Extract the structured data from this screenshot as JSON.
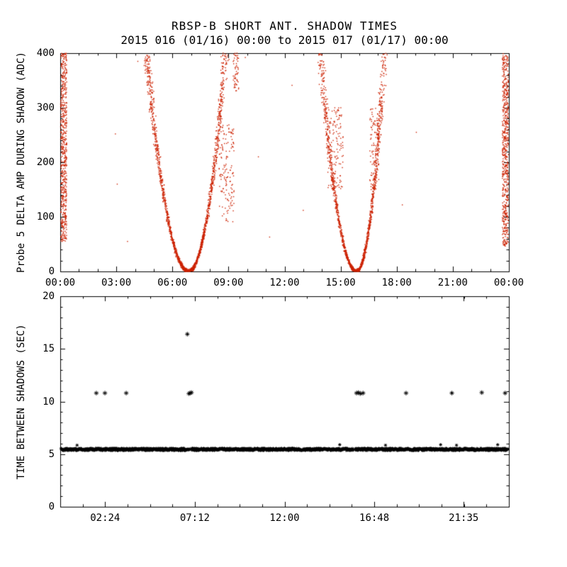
{
  "colors": {
    "background": "#ffffff",
    "axes": "#000000"
  },
  "chart_data": [
    {
      "type": "scatter",
      "panel": "top",
      "title": "RBSP-B SHORT ANT. SHADOW TIMES",
      "subtitle": "2015 016 (01/16) 00:00 to 2015 017 (01/17) 00:00",
      "xlabel": "",
      "ylabel": "Probe 5 DELTA AMP DURING SHADOW (ADC)",
      "xlim": [
        0,
        24
      ],
      "ylim": [
        0,
        400
      ],
      "xtick_positions": [
        0,
        3,
        6,
        9,
        12,
        15,
        18,
        21,
        24
      ],
      "xtick_labels": [
        "00:00",
        "03:00",
        "06:00",
        "09:00",
        "12:00",
        "15:00",
        "18:00",
        "21:00",
        "00:00"
      ],
      "ytick_positions": [
        0,
        100,
        200,
        300,
        400
      ],
      "ytick_labels": [
        "0",
        "100",
        "200",
        "300",
        "400"
      ],
      "x_minor_step": 1,
      "y_minor_step": 20,
      "marker": "dot",
      "color": "#cc2200",
      "series_description": "Probe 5 delta amplitude during shadow; V-shaped shadow signatures with vertices near 06:55 and 15:50 at 0 ADC, arms rising to 400 ADC, plus dense vertical bands at the 00:00 day boundaries",
      "v_curves": [
        {
          "center": 6.87,
          "left_top_x": 4.6,
          "right_top_x": 8.85,
          "n_per_arm": 900
        },
        {
          "center": 15.85,
          "left_top_x": 13.9,
          "right_top_x": 17.35,
          "n_per_arm": 750
        }
      ],
      "edge_bands": [
        {
          "x0": 0.02,
          "x1": 0.35,
          "y0": 55,
          "y1": 400,
          "n": 600
        },
        {
          "x0": 23.65,
          "x1": 23.98,
          "y0": 45,
          "y1": 400,
          "n": 620
        }
      ],
      "blobs": [
        {
          "x0": 8.5,
          "x1": 9.3,
          "y0": 90,
          "y1": 270,
          "n": 150
        },
        {
          "x0": 9.25,
          "x1": 9.55,
          "y0": 330,
          "y1": 400,
          "n": 55
        },
        {
          "x0": 14.3,
          "x1": 15.15,
          "y0": 150,
          "y1": 300,
          "n": 140
        },
        {
          "x0": 16.55,
          "x1": 17.05,
          "y0": 150,
          "y1": 300,
          "n": 85
        }
      ],
      "outliers": [
        [
          2.95,
          252
        ],
        [
          3.05,
          160
        ],
        [
          4.15,
          385
        ],
        [
          5.0,
          330
        ],
        [
          9.9,
          392
        ],
        [
          11.2,
          63
        ],
        [
          12.4,
          341
        ],
        [
          13.0,
          112
        ],
        [
          18.3,
          122
        ],
        [
          19.05,
          255
        ],
        [
          10.6,
          210
        ],
        [
          3.6,
          55
        ]
      ]
    },
    {
      "type": "scatter",
      "panel": "bottom",
      "title": "",
      "xlabel": "",
      "ylabel": "TIME BETWEEN SHADOWS (SEC)",
      "xlim": [
        0,
        24
      ],
      "ylim": [
        0,
        20
      ],
      "xtick_positions": [
        2.4,
        7.2,
        12.0,
        16.8,
        21.5833
      ],
      "xtick_labels": [
        "02:24",
        "07:12",
        "12:00",
        "16:48",
        "21:35"
      ],
      "ytick_positions": [
        0,
        5,
        10,
        15,
        20
      ],
      "ytick_labels": [
        "0",
        "5",
        "10",
        "15",
        "20"
      ],
      "x_minor_step": 1.2,
      "y_minor_step": 1,
      "marker": "asterisk",
      "color": "#000000",
      "series_description": "Time between shadows: continuous dense band of points at ~5.4 s across the whole day (narrow gaps near 06:58 and 15:44), isolated points at ~10.8 s, one point at ~16.4 s near 06:48",
      "band": {
        "y_center": 5.45,
        "y_spread": 0.22,
        "x0": 0.05,
        "x1": 23.95,
        "gaps": [
          [
            6.93,
            7.0
          ],
          [
            15.69,
            15.78
          ]
        ]
      },
      "band_bumps": [
        [
          0.9,
          5.85
        ],
        [
          14.95,
          5.9
        ],
        [
          17.4,
          5.85
        ],
        [
          20.35,
          5.9
        ],
        [
          21.2,
          5.85
        ],
        [
          23.4,
          5.9
        ]
      ],
      "points_mid": [
        [
          1.93,
          10.8
        ],
        [
          2.39,
          10.8
        ],
        [
          3.53,
          10.8
        ],
        [
          6.88,
          10.75
        ],
        [
          6.95,
          10.8
        ],
        [
          7.02,
          10.85
        ],
        [
          15.85,
          10.8
        ],
        [
          15.95,
          10.85
        ],
        [
          16.05,
          10.75
        ],
        [
          16.2,
          10.8
        ],
        [
          18.5,
          10.8
        ],
        [
          20.95,
          10.8
        ],
        [
          22.55,
          10.85
        ],
        [
          23.8,
          10.8
        ]
      ],
      "points_high": [
        [
          6.8,
          16.4
        ]
      ]
    }
  ]
}
